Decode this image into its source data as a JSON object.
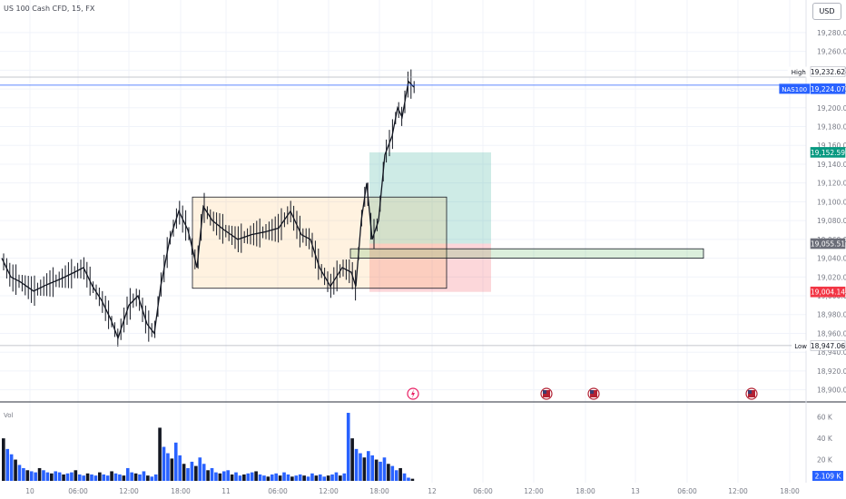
{
  "header": {
    "symbol_line": "US 100 Cash CFD, 15, FX",
    "currency": "USD"
  },
  "chart_data": {
    "type": "candlestick",
    "price_axis": {
      "range": [
        18890,
        19305
      ],
      "ticks": [
        "19,280.00",
        "19,260.00",
        "19,240.00",
        "19,220.00",
        "19,200.00",
        "19,180.00",
        "19,160.00",
        "19,140.00",
        "19,120.00",
        "19,100.00",
        "19,080.00",
        "19,060.00",
        "19,040.00",
        "19,020.00",
        "19,000.00",
        "18,980.00",
        "18,960.00",
        "18,940.00",
        "18,920.00",
        "18,900.00"
      ]
    },
    "time_axis": {
      "labels": [
        "10",
        "06:00",
        "12:00",
        "18:00",
        "11",
        "06:00",
        "12:00",
        "18:00",
        "12",
        "06:00",
        "12:00",
        "18:00",
        "13",
        "06:00",
        "12:00",
        "18:00"
      ]
    },
    "price_labels": [
      {
        "id": "high",
        "tag": "High",
        "value": "19,232.62"
      },
      {
        "id": "nas100",
        "tag": "NAS100",
        "value": "19,224.07"
      },
      {
        "id": "target",
        "tag": "",
        "value": "19,152.59"
      },
      {
        "id": "entry",
        "tag": "",
        "value": "19,055.51"
      },
      {
        "id": "stop",
        "tag": "",
        "value": "19,004.14"
      },
      {
        "id": "low",
        "tag": "Low",
        "value": "18,947.06"
      }
    ],
    "levels": {
      "high": 19232.62,
      "nas100": 19224.07,
      "target": 19152.59,
      "entry": 19055.51,
      "stop": 19004.14,
      "low": 18947.06
    },
    "range_box": {
      "top": 19105,
      "bottom": 19008
    },
    "zone_box": {
      "top": 19050,
      "bottom": 19040
    },
    "price_path": [
      [
        0,
        19040
      ],
      [
        10,
        19020
      ],
      [
        20,
        19015
      ],
      [
        35,
        19005
      ],
      [
        50,
        19012
      ],
      [
        65,
        19018
      ],
      [
        80,
        19025
      ],
      [
        90,
        19030
      ],
      [
        100,
        19010
      ],
      [
        110,
        18995
      ],
      [
        120,
        18975
      ],
      [
        128,
        18955
      ],
      [
        140,
        18990
      ],
      [
        150,
        19000
      ],
      [
        160,
        18970
      ],
      [
        168,
        18960
      ],
      [
        175,
        19010
      ],
      [
        185,
        19060
      ],
      [
        195,
        19090
      ],
      [
        205,
        19070
      ],
      [
        215,
        19030
      ],
      [
        222,
        19095
      ],
      [
        232,
        19080
      ],
      [
        245,
        19070
      ],
      [
        260,
        19060
      ],
      [
        275,
        19065
      ],
      [
        290,
        19068
      ],
      [
        305,
        19072
      ],
      [
        318,
        19090
      ],
      [
        330,
        19065
      ],
      [
        340,
        19060
      ],
      [
        350,
        19030
      ],
      [
        362,
        19010
      ],
      [
        375,
        19030
      ],
      [
        385,
        19025
      ],
      [
        390,
        19010
      ],
      [
        396,
        19080
      ],
      [
        402,
        19120
      ],
      [
        408,
        19060
      ],
      [
        415,
        19080
      ],
      [
        422,
        19150
      ],
      [
        430,
        19170
      ],
      [
        436,
        19200
      ],
      [
        441,
        19190
      ],
      [
        448,
        19228
      ],
      [
        454,
        19222
      ]
    ],
    "volume": {
      "axis": {
        "range": [
          0,
          70
        ],
        "ticks": [
          "60 K",
          "40 K",
          "20 K"
        ]
      },
      "last_value": "2.109 K",
      "values": [
        40,
        30,
        25,
        20,
        15,
        12,
        10,
        9,
        8,
        12,
        10,
        8,
        7,
        9,
        8,
        6,
        7,
        8,
        10,
        6,
        5,
        7,
        6,
        5,
        8,
        6,
        5,
        9,
        7,
        6,
        5,
        12,
        8,
        7,
        6,
        9,
        5,
        4,
        6,
        50,
        32,
        26,
        21,
        36,
        24,
        16,
        12,
        18,
        14,
        22,
        16,
        10,
        12,
        8,
        7,
        9,
        10,
        6,
        8,
        5,
        6,
        7,
        8,
        9,
        6,
        5,
        4,
        6,
        7,
        5,
        8,
        6,
        4,
        5,
        6,
        5,
        4,
        7,
        5,
        6,
        4,
        5,
        6,
        8,
        5,
        7,
        64,
        40,
        30,
        26,
        22,
        28,
        24,
        20,
        18,
        22,
        16,
        14,
        10,
        12,
        7,
        3,
        2
      ]
    },
    "markers": [
      "flash",
      "us-flag",
      "us-flag",
      "us-flag"
    ]
  }
}
